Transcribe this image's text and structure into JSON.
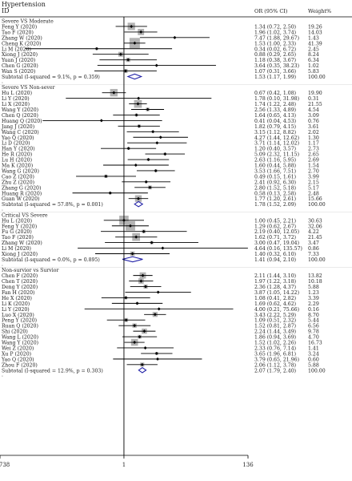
{
  "chart_data": {
    "type": "forest",
    "header": {
      "col1_line1": "Hypertension",
      "col1_line2": "ID",
      "col2": "OR (95% CI)",
      "col3": "Weight%"
    },
    "x_axis": {
      "scale": "log",
      "ticks": [
        ".00738",
        "1",
        "136"
      ],
      "tick_values": [
        0.00738,
        1,
        136
      ]
    },
    "groups": [
      {
        "title": "Severe VS Moderate",
        "studies": [
          {
            "id": "Feng Y (2020)",
            "or": 1.34,
            "lo": 0.72,
            "hi": 2.5,
            "ci": "1.34 (0.72, 2.50)",
            "weight": "19.26"
          },
          {
            "id": "Tao F (2020)",
            "or": 1.96,
            "lo": 1.02,
            "hi": 3.74,
            "ci": "1.96 (1.02, 3.74)",
            "weight": "14.03"
          },
          {
            "id": "Zhang W (2020)",
            "or": 7.47,
            "lo": 1.88,
            "hi": 29.67,
            "ci": "7.47 (1.88, 29.67)",
            "weight": "1.43"
          },
          {
            "id": "Cheng K (2020)",
            "or": 1.53,
            "lo": 1.0,
            "hi": 2.33,
            "ci": "1.53 (1.00, 2.33)",
            "weight": "41.39"
          },
          {
            "id": "Li M (2020)",
            "or": 0.34,
            "lo": 0.02,
            "hi": 6.72,
            "ci": "0.34 (0.02, 6.72)",
            "weight": "2.45"
          },
          {
            "id": "Xiong J (2020)",
            "or": 0.88,
            "lo": 0.29,
            "hi": 2.65,
            "ci": "0.88 (0.29, 2.65)",
            "weight": "8.24"
          },
          {
            "id": "Yuan J (2020)",
            "or": 1.18,
            "lo": 0.38,
            "hi": 3.67,
            "ci": "1.18 (0.38, 3.67)",
            "weight": "6.34"
          },
          {
            "id": "Chen G (2020)",
            "or": 3.64,
            "lo": 0.35,
            "hi": 38.23,
            "ci": "3.64 (0.35, 38.23)",
            "weight": "1.02"
          },
          {
            "id": "Wan S (2020)",
            "or": 1.07,
            "lo": 0.31,
            "hi": 3.66,
            "ci": "1.07 (0.31, 3.66)",
            "weight": "5.83"
          }
        ],
        "subtotal": {
          "label": "Subtotal  (I-squared = 9.1%, p = 0.359)",
          "or": 1.53,
          "lo": 1.17,
          "hi": 1.99,
          "ci": "1.53 (1.17, 1.99)",
          "weight": "100.00"
        }
      },
      {
        "title": "Severe VS Non-sever",
        "studies": [
          {
            "id": "Hu L (2020)",
            "or": 0.67,
            "lo": 0.42,
            "hi": 1.08,
            "ci": "0.67 (0.42, 1.08)",
            "weight": "19.90"
          },
          {
            "id": "Li Y (2020)",
            "or": 1.78,
            "lo": 0.1,
            "hi": 31.98,
            "ci": "1.78 (0.10, 31.98)",
            "weight": "0.31"
          },
          {
            "id": "Li X (2020)",
            "or": 1.74,
            "lo": 1.22,
            "hi": 2.48,
            "ci": "1.74 (1.22, 2.48)",
            "weight": "21.55"
          },
          {
            "id": "Wang Y (2020)",
            "or": 2.56,
            "lo": 1.33,
            "hi": 4.89,
            "ci": "2.56 (1.33, 4.89)",
            "weight": "4.54"
          },
          {
            "id": "Chen Q (2020)",
            "or": 1.64,
            "lo": 0.65,
            "hi": 4.13,
            "ci": "1.64 (0.65, 4.13)",
            "weight": "3.09"
          },
          {
            "id": "Huang Q (2020)",
            "or": 0.41,
            "lo": 0.04,
            "hi": 4.53,
            "ci": "0.41 (0.04, 4.53)",
            "weight": "0.76"
          },
          {
            "id": "Jang J (2020)",
            "or": 1.82,
            "lo": 0.79,
            "hi": 4.15,
            "ci": "1.82 (0.79, 4.15)",
            "weight": "3.61"
          },
          {
            "id": "Wang C (2020)",
            "or": 3.15,
            "lo": 1.12,
            "hi": 8.82,
            "ci": "3.15 (1.12, 8.82)",
            "weight": "2.02"
          },
          {
            "id": "Yao Q (2020)",
            "or": 4.27,
            "lo": 1.44,
            "hi": 12.62,
            "ci": "4.27 (1.44, 12.62)",
            "weight": "1.30"
          },
          {
            "id": "Li D (2020)",
            "or": 3.71,
            "lo": 1.14,
            "hi": 12.02,
            "ci": "3.71 (1.14, 12.02)",
            "weight": "1.17"
          },
          {
            "id": "Han Y (2020)",
            "or": 1.2,
            "lo": 0.4,
            "hi": 3.57,
            "ci": "1.20 (0.40, 3.57)",
            "weight": "2.73"
          },
          {
            "id": "He R (2020)",
            "or": 5.09,
            "lo": 2.32,
            "hi": 11.15,
            "ci": "5.09 (2.32, 11.15)",
            "weight": "2.65"
          },
          {
            "id": "Lu H (2020)",
            "or": 2.63,
            "lo": 1.16,
            "hi": 5.95,
            "ci": "2.63 (1.16, 5.95)",
            "weight": "2.69"
          },
          {
            "id": "Ma K (2020)",
            "or": 1.6,
            "lo": 0.44,
            "hi": 5.88,
            "ci": "1.60 (0.44, 5.88)",
            "weight": "1.54"
          },
          {
            "id": "Wang G (2020)",
            "or": 3.53,
            "lo": 1.66,
            "hi": 7.51,
            "ci": "3.53 (1.66, 7.51)",
            "weight": "2.70"
          },
          {
            "id": "Cao Z (2020)",
            "or": 0.49,
            "lo": 0.15,
            "hi": 1.61,
            "ci": "0.49 (0.15, 1.61)",
            "weight": "3.99"
          },
          {
            "id": "Zhu Z (2020)",
            "or": 2.41,
            "lo": 0.92,
            "hi": 6.3,
            "ci": "2.41 (0.92, 6.30)",
            "weight": "2.15"
          },
          {
            "id": "Zhang G (2020)",
            "or": 2.8,
            "lo": 1.52,
            "hi": 5.18,
            "ci": "2.80 (1.52, 5.18)",
            "weight": "5.17"
          },
          {
            "id": "Huang R (2020)",
            "or": 0.58,
            "lo": 0.13,
            "hi": 2.58,
            "ci": "0.58 (0.13, 2.58)",
            "weight": "2.48"
          },
          {
            "id": "Guan W (2020)",
            "or": 1.77,
            "lo": 1.2,
            "hi": 2.61,
            "ci": "1.77 (1.20, 2.61)",
            "weight": "15.66"
          }
        ],
        "subtotal": {
          "label": "Subtotal  (I-squared = 57.8%, p = 0.001)",
          "or": 1.78,
          "lo": 1.52,
          "hi": 2.09,
          "ci": "1.78 (1.52, 2.09)",
          "weight": "100.00"
        }
      },
      {
        "title": "Critical VS Severe",
        "studies": [
          {
            "id": "Hu L (2020)",
            "or": 1.0,
            "lo": 0.45,
            "hi": 2.21,
            "ci": "1.00 (0.45, 2.21)",
            "weight": "30.63"
          },
          {
            "id": "Feng Y (2020)",
            "or": 1.29,
            "lo": 0.62,
            "hi": 2.67,
            "ci": "1.29 (0.62, 2.67)",
            "weight": "32.06"
          },
          {
            "id": "Fu G (2020)",
            "or": 2.19,
            "lo": 0.4,
            "hi": 12.05,
            "ci": "2.19 (0.40, 12.05)",
            "weight": "4.22"
          },
          {
            "id": "Tao F (2020)",
            "or": 1.62,
            "lo": 0.71,
            "hi": 3.72,
            "ci": "1.62 (0.71, 3.72)",
            "weight": "21.45"
          },
          {
            "id": "Zhang W (2020)",
            "or": 3.0,
            "lo": 0.47,
            "hi": 19.04,
            "ci": "3.00 (0.47, 19.04)",
            "weight": "3.47"
          },
          {
            "id": "Li M (2020)",
            "or": 4.64,
            "lo": 0.16,
            "hi": 135.57,
            "ci": "4.64 (0.16, 135.57)",
            "weight": "0.86"
          },
          {
            "id": "Xiong J (2020)",
            "or": 1.4,
            "lo": 0.32,
            "hi": 6.1,
            "ci": "1.40 (0.32, 6.10)",
            "weight": "7.33"
          }
        ],
        "subtotal": {
          "label": "Subtotal  (I-squared = 0.0%, p = 0.895)",
          "or": 1.41,
          "lo": 0.94,
          "hi": 2.1,
          "ci": "1.41 (0.94, 2.10)",
          "weight": "100.00"
        }
      },
      {
        "title": "Non-survior vs Survior",
        "studies": [
          {
            "id": "Chen F (2020)",
            "or": 2.11,
            "lo": 1.44,
            "hi": 3.1,
            "ci": "2.11 (1.44, 3.10)",
            "weight": "13.82"
          },
          {
            "id": "Chen T (2020)",
            "or": 1.97,
            "lo": 1.22,
            "hi": 3.18,
            "ci": "1.97 (1.22, 3.18)",
            "weight": "10.18"
          },
          {
            "id": "Deng Y (2020)",
            "or": 2.36,
            "lo": 1.28,
            "hi": 4.37,
            "ci": "2.36 (1.28, 4.37)",
            "weight": "5.88"
          },
          {
            "id": "Fan H (2020)",
            "or": 3.87,
            "lo": 1.05,
            "hi": 14.22,
            "ci": "3.87 (1.05, 14.22)",
            "weight": "1.23"
          },
          {
            "id": "He X (2020)",
            "or": 1.08,
            "lo": 0.41,
            "hi": 2.82,
            "ci": "1.08 (0.41, 2.82)",
            "weight": "3.39"
          },
          {
            "id": "Li K (2020)",
            "or": 1.69,
            "lo": 0.62,
            "hi": 4.62,
            "ci": "1.69 (0.62, 4.62)",
            "weight": "2.29"
          },
          {
            "id": "Li Y (2020)",
            "or": 4.0,
            "lo": 0.21,
            "hi": 75.66,
            "ci": "4.00 (0.21, 75.66)",
            "weight": "0.16"
          },
          {
            "id": "Luo X (2020)",
            "or": 3.43,
            "lo": 2.22,
            "hi": 5.29,
            "ci": "3.43 (2.22, 5.29)",
            "weight": "8.70"
          },
          {
            "id": "Peng Y (2020)",
            "or": 1.09,
            "lo": 0.51,
            "hi": 2.32,
            "ci": "1.09 (0.51, 2.32)",
            "weight": "5.44"
          },
          {
            "id": "Ruan Q (2020)",
            "or": 1.52,
            "lo": 0.81,
            "hi": 2.87,
            "ci": "1.52 (0.81, 2.87)",
            "weight": "6.56"
          },
          {
            "id": "Shi (2020)",
            "or": 2.24,
            "lo": 1.44,
            "hi": 3.49,
            "ci": "2.24 (1.44, 3.49)",
            "weight": "9.78"
          },
          {
            "id": "Wang L (2020)",
            "or": 1.86,
            "lo": 0.94,
            "hi": 3.69,
            "ci": "1.86 (0.94, 3.69)",
            "weight": "4.70"
          },
          {
            "id": "Wang Y (2020)",
            "or": 1.52,
            "lo": 1.02,
            "hi": 2.26,
            "ci": "1.52 (1.02, 2.26)",
            "weight": "16.73"
          },
          {
            "id": "Wei Z (2020)",
            "or": 2.33,
            "lo": 0.76,
            "hi": 7.14,
            "ci": "2.33 (0.76, 7.14)",
            "weight": "1.41"
          },
          {
            "id": "Xu P (2020)",
            "or": 3.65,
            "lo": 1.96,
            "hi": 6.81,
            "ci": "3.65 (1.96, 6.81)",
            "weight": "3.24"
          },
          {
            "id": "Yao Q (2020)",
            "or": 3.79,
            "lo": 0.65,
            "hi": 21.96,
            "ci": "3.79 (0.65, 21.96)",
            "weight": "0.60"
          },
          {
            "id": "Zhou F (2020)",
            "or": 2.06,
            "lo": 1.12,
            "hi": 3.78,
            "ci": "2.06 (1.12, 3.78)",
            "weight": "5.88"
          }
        ],
        "subtotal": {
          "label": "Subtotal  (I-squared = 12.9%, p = 0.303)",
          "or": 2.07,
          "lo": 1.79,
          "hi": 2.4,
          "ci": "2.07 (1.79, 2.40)",
          "weight": "100.00"
        }
      }
    ],
    "colors": {
      "box": "#b3b3b3",
      "line": "#000000",
      "diamond": "#2323a8",
      "text": "#222222"
    }
  }
}
